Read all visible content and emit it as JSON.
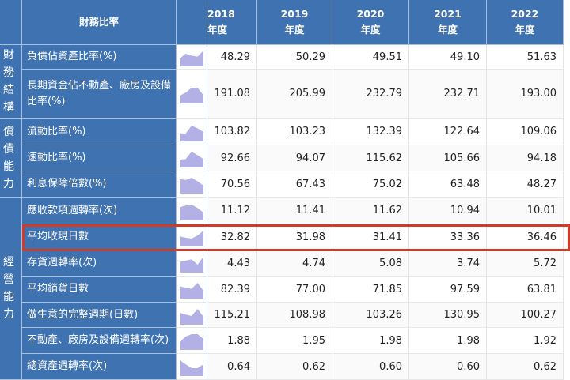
{
  "header": {
    "title": "財務比率",
    "years": [
      {
        "y": "2018",
        "s": "年度"
      },
      {
        "y": "2019",
        "s": "年度"
      },
      {
        "y": "2020",
        "s": "年度"
      },
      {
        "y": "2021",
        "s": "年度"
      },
      {
        "y": "2022",
        "s": "年度"
      }
    ]
  },
  "groups": [
    {
      "label": "財務結構",
      "rows": 2
    },
    {
      "label": "償債能力",
      "rows": 3
    },
    {
      "label": "經營能力",
      "rows": 7
    }
  ],
  "rows": [
    {
      "label": "負債佔資產比率(%)",
      "values": [
        "48.29",
        "50.29",
        "49.51",
        "49.10",
        "51.63"
      ]
    },
    {
      "label": "長期資金佔不動產、廠房及設備比率(%)",
      "values": [
        "191.08",
        "205.99",
        "232.79",
        "232.71",
        "193.00"
      ]
    },
    {
      "label": "流動比率(%)",
      "values": [
        "103.82",
        "103.23",
        "132.39",
        "122.64",
        "109.06"
      ]
    },
    {
      "label": "速動比率(%)",
      "values": [
        "92.66",
        "94.07",
        "115.62",
        "105.66",
        "94.18"
      ]
    },
    {
      "label": "利息保障倍數(%)",
      "values": [
        "70.56",
        "67.43",
        "75.02",
        "63.48",
        "48.27"
      ]
    },
    {
      "label": "應收款項週轉率(次)",
      "values": [
        "11.12",
        "11.41",
        "11.62",
        "10.94",
        "10.01"
      ]
    },
    {
      "label": "平均收現日數",
      "values": [
        "32.82",
        "31.98",
        "31.41",
        "33.36",
        "36.46"
      ],
      "highlighted": true
    },
    {
      "label": "存貨週轉率(次)",
      "values": [
        "4.43",
        "4.74",
        "5.08",
        "3.74",
        "5.72"
      ]
    },
    {
      "label": "平均銷貨日數",
      "values": [
        "82.39",
        "77.00",
        "71.85",
        "97.59",
        "63.81"
      ]
    },
    {
      "label": "做生意的完整週期(日數)",
      "values": [
        "115.21",
        "108.98",
        "103.26",
        "130.95",
        "100.27"
      ]
    },
    {
      "label": "不動產、廠房及設備週轉率(次)",
      "values": [
        "1.88",
        "1.95",
        "1.98",
        "1.98",
        "1.92"
      ]
    },
    {
      "label": "總資產週轉率(次)",
      "values": [
        "0.64",
        "0.62",
        "0.60",
        "0.60",
        "0.62"
      ]
    }
  ],
  "colors": {
    "header": "#3f72b0",
    "sparkline": "#b3b0e6",
    "highlight": "#d03a28"
  }
}
